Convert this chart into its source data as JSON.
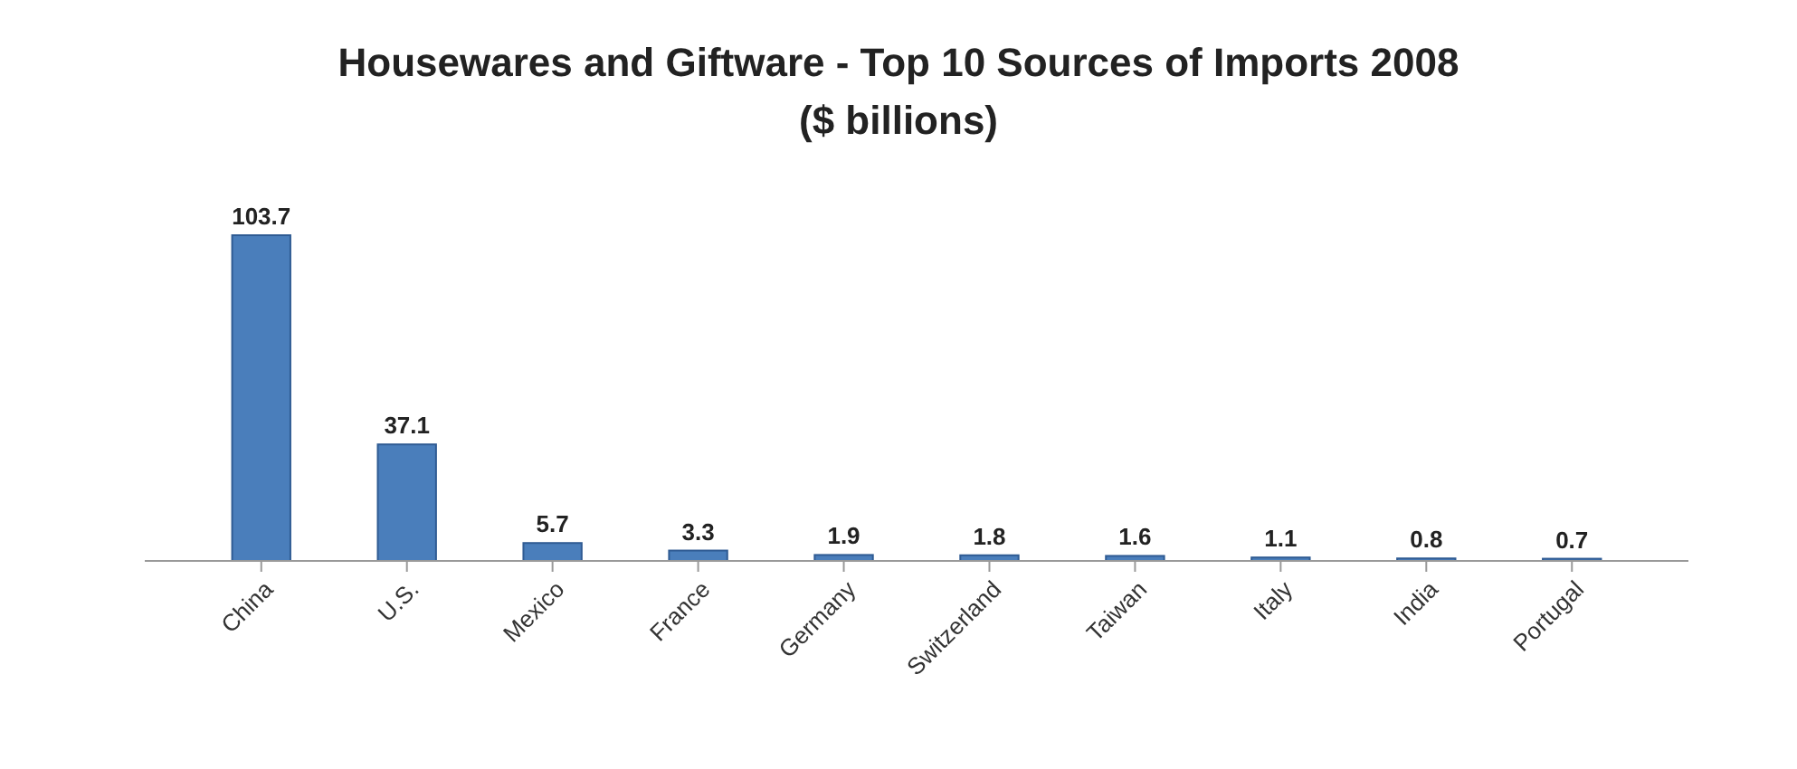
{
  "chart_data": {
    "type": "bar",
    "title": "Housewares and Giftware - Top 10 Sources of Imports 2008",
    "subtitle": "($ billions)",
    "categories": [
      "China",
      "U.S.",
      "Mexico",
      "France",
      "Germany",
      "Switzerland",
      "Taiwan",
      "Italy",
      "India",
      "Portugal"
    ],
    "values": [
      103.7,
      37.1,
      5.7,
      3.3,
      1.9,
      1.8,
      1.6,
      1.1,
      0.8,
      0.7
    ],
    "color": "#4a7ebb",
    "data_labels": true
  }
}
